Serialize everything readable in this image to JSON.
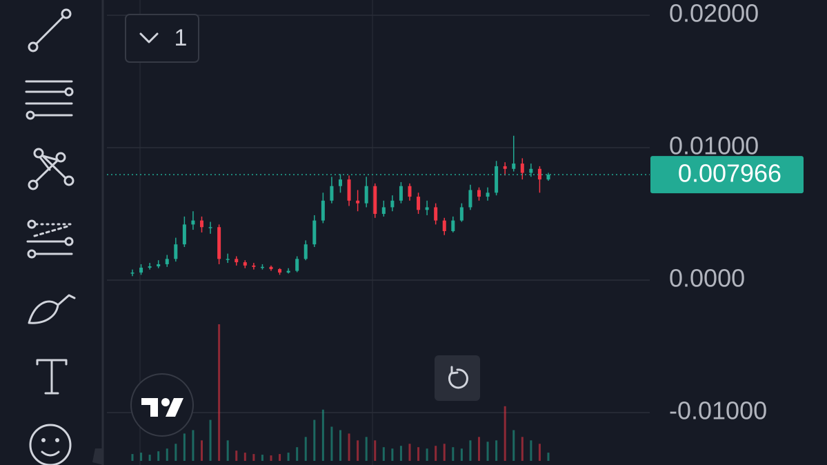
{
  "chart_data": {
    "type": "candlestick",
    "open": [
      0.0005,
      0.00057,
      0.00094,
      0.00104,
      0.0012,
      0.0016,
      0.0027,
      0.0042,
      0.0045,
      0.004,
      0.004,
      0.0016,
      0.0016,
      0.00135,
      0.0011,
      0.001,
      0.001,
      0.00083,
      0.00057,
      0.0007,
      0.0016,
      0.0027,
      0.0045,
      0.006,
      0.0071,
      0.0076,
      0.006,
      0.0058,
      0.0071,
      0.005,
      0.0055,
      0.006,
      0.0071,
      0.0063,
      0.0053,
      0.0055,
      0.0045,
      0.0037,
      0.0045,
      0.0055,
      0.0068,
      0.0063,
      0.0066,
      0.0086,
      0.0084,
      0.0088,
      0.0081,
      0.0084,
      0.0076
    ],
    "high": [
      0.0008,
      0.0012,
      0.0013,
      0.0015,
      0.0019,
      0.0032,
      0.0048,
      0.0052,
      0.0048,
      0.0044,
      0.0042,
      0.002,
      0.0018,
      0.0015,
      0.0013,
      0.0012,
      0.0011,
      0.0009,
      0.0009,
      0.0018,
      0.003,
      0.0049,
      0.0066,
      0.0078,
      0.008,
      0.0079,
      0.0068,
      0.0078,
      0.0073,
      0.006,
      0.0064,
      0.0074,
      0.0073,
      0.0066,
      0.006,
      0.0058,
      0.0047,
      0.0048,
      0.0058,
      0.0072,
      0.007,
      0.007,
      0.009,
      0.0089,
      0.0109,
      0.0092,
      0.0088,
      0.0086,
      0.0081
    ],
    "low": [
      0.0003,
      0.0004,
      0.0008,
      0.0009,
      0.001,
      0.0014,
      0.0025,
      0.0038,
      0.0036,
      0.0035,
      0.0012,
      0.0013,
      0.0011,
      0.0009,
      0.0008,
      0.0008,
      0.0007,
      0.0004,
      0.0005,
      0.0006,
      0.0015,
      0.0025,
      0.0043,
      0.0058,
      0.0066,
      0.0056,
      0.0052,
      0.0055,
      0.0047,
      0.0048,
      0.0052,
      0.0058,
      0.006,
      0.005,
      0.0049,
      0.0042,
      0.0034,
      0.0036,
      0.0044,
      0.0053,
      0.006,
      0.006,
      0.0064,
      0.0079,
      0.0082,
      0.0076,
      0.0078,
      0.0066,
      0.0075
    ],
    "close": [
      0.00057,
      0.00094,
      0.00104,
      0.0012,
      0.0016,
      0.0027,
      0.0042,
      0.0045,
      0.004,
      0.004,
      0.0016,
      0.0016,
      0.00135,
      0.0011,
      0.001,
      0.001,
      0.00083,
      0.00057,
      0.0007,
      0.0016,
      0.0027,
      0.0045,
      0.006,
      0.0071,
      0.0076,
      0.006,
      0.0058,
      0.0071,
      0.005,
      0.0055,
      0.006,
      0.0071,
      0.0063,
      0.0053,
      0.0055,
      0.0045,
      0.0037,
      0.0045,
      0.0055,
      0.0068,
      0.0063,
      0.0066,
      0.0086,
      0.0084,
      0.0088,
      0.0081,
      0.0084,
      0.0076,
      0.007966
    ],
    "volume": [
      10,
      12,
      9,
      14,
      18,
      25,
      40,
      45,
      30,
      60,
      200,
      30,
      15,
      12,
      10,
      9,
      8,
      10,
      12,
      20,
      35,
      60,
      75,
      50,
      45,
      40,
      30,
      35,
      30,
      20,
      18,
      22,
      25,
      20,
      18,
      22,
      25,
      20,
      18,
      30,
      35,
      28,
      30,
      80,
      45,
      35,
      30,
      25,
      12
    ],
    "up_color": "#22ab94",
    "down_color": "#f23645",
    "ylim": [
      -0.01396,
      0.02115
    ],
    "yticks": [
      {
        "value": 0.02,
        "label": "0.02000"
      },
      {
        "value": 0.01,
        "label": "0.01000"
      },
      {
        "value": 0,
        "label": "0.0000"
      },
      {
        "value": -0.01,
        "label": "-0.01000"
      }
    ],
    "last_price": 0.007966,
    "grid": true
  },
  "ui": {
    "legend_toggle": "1"
  }
}
